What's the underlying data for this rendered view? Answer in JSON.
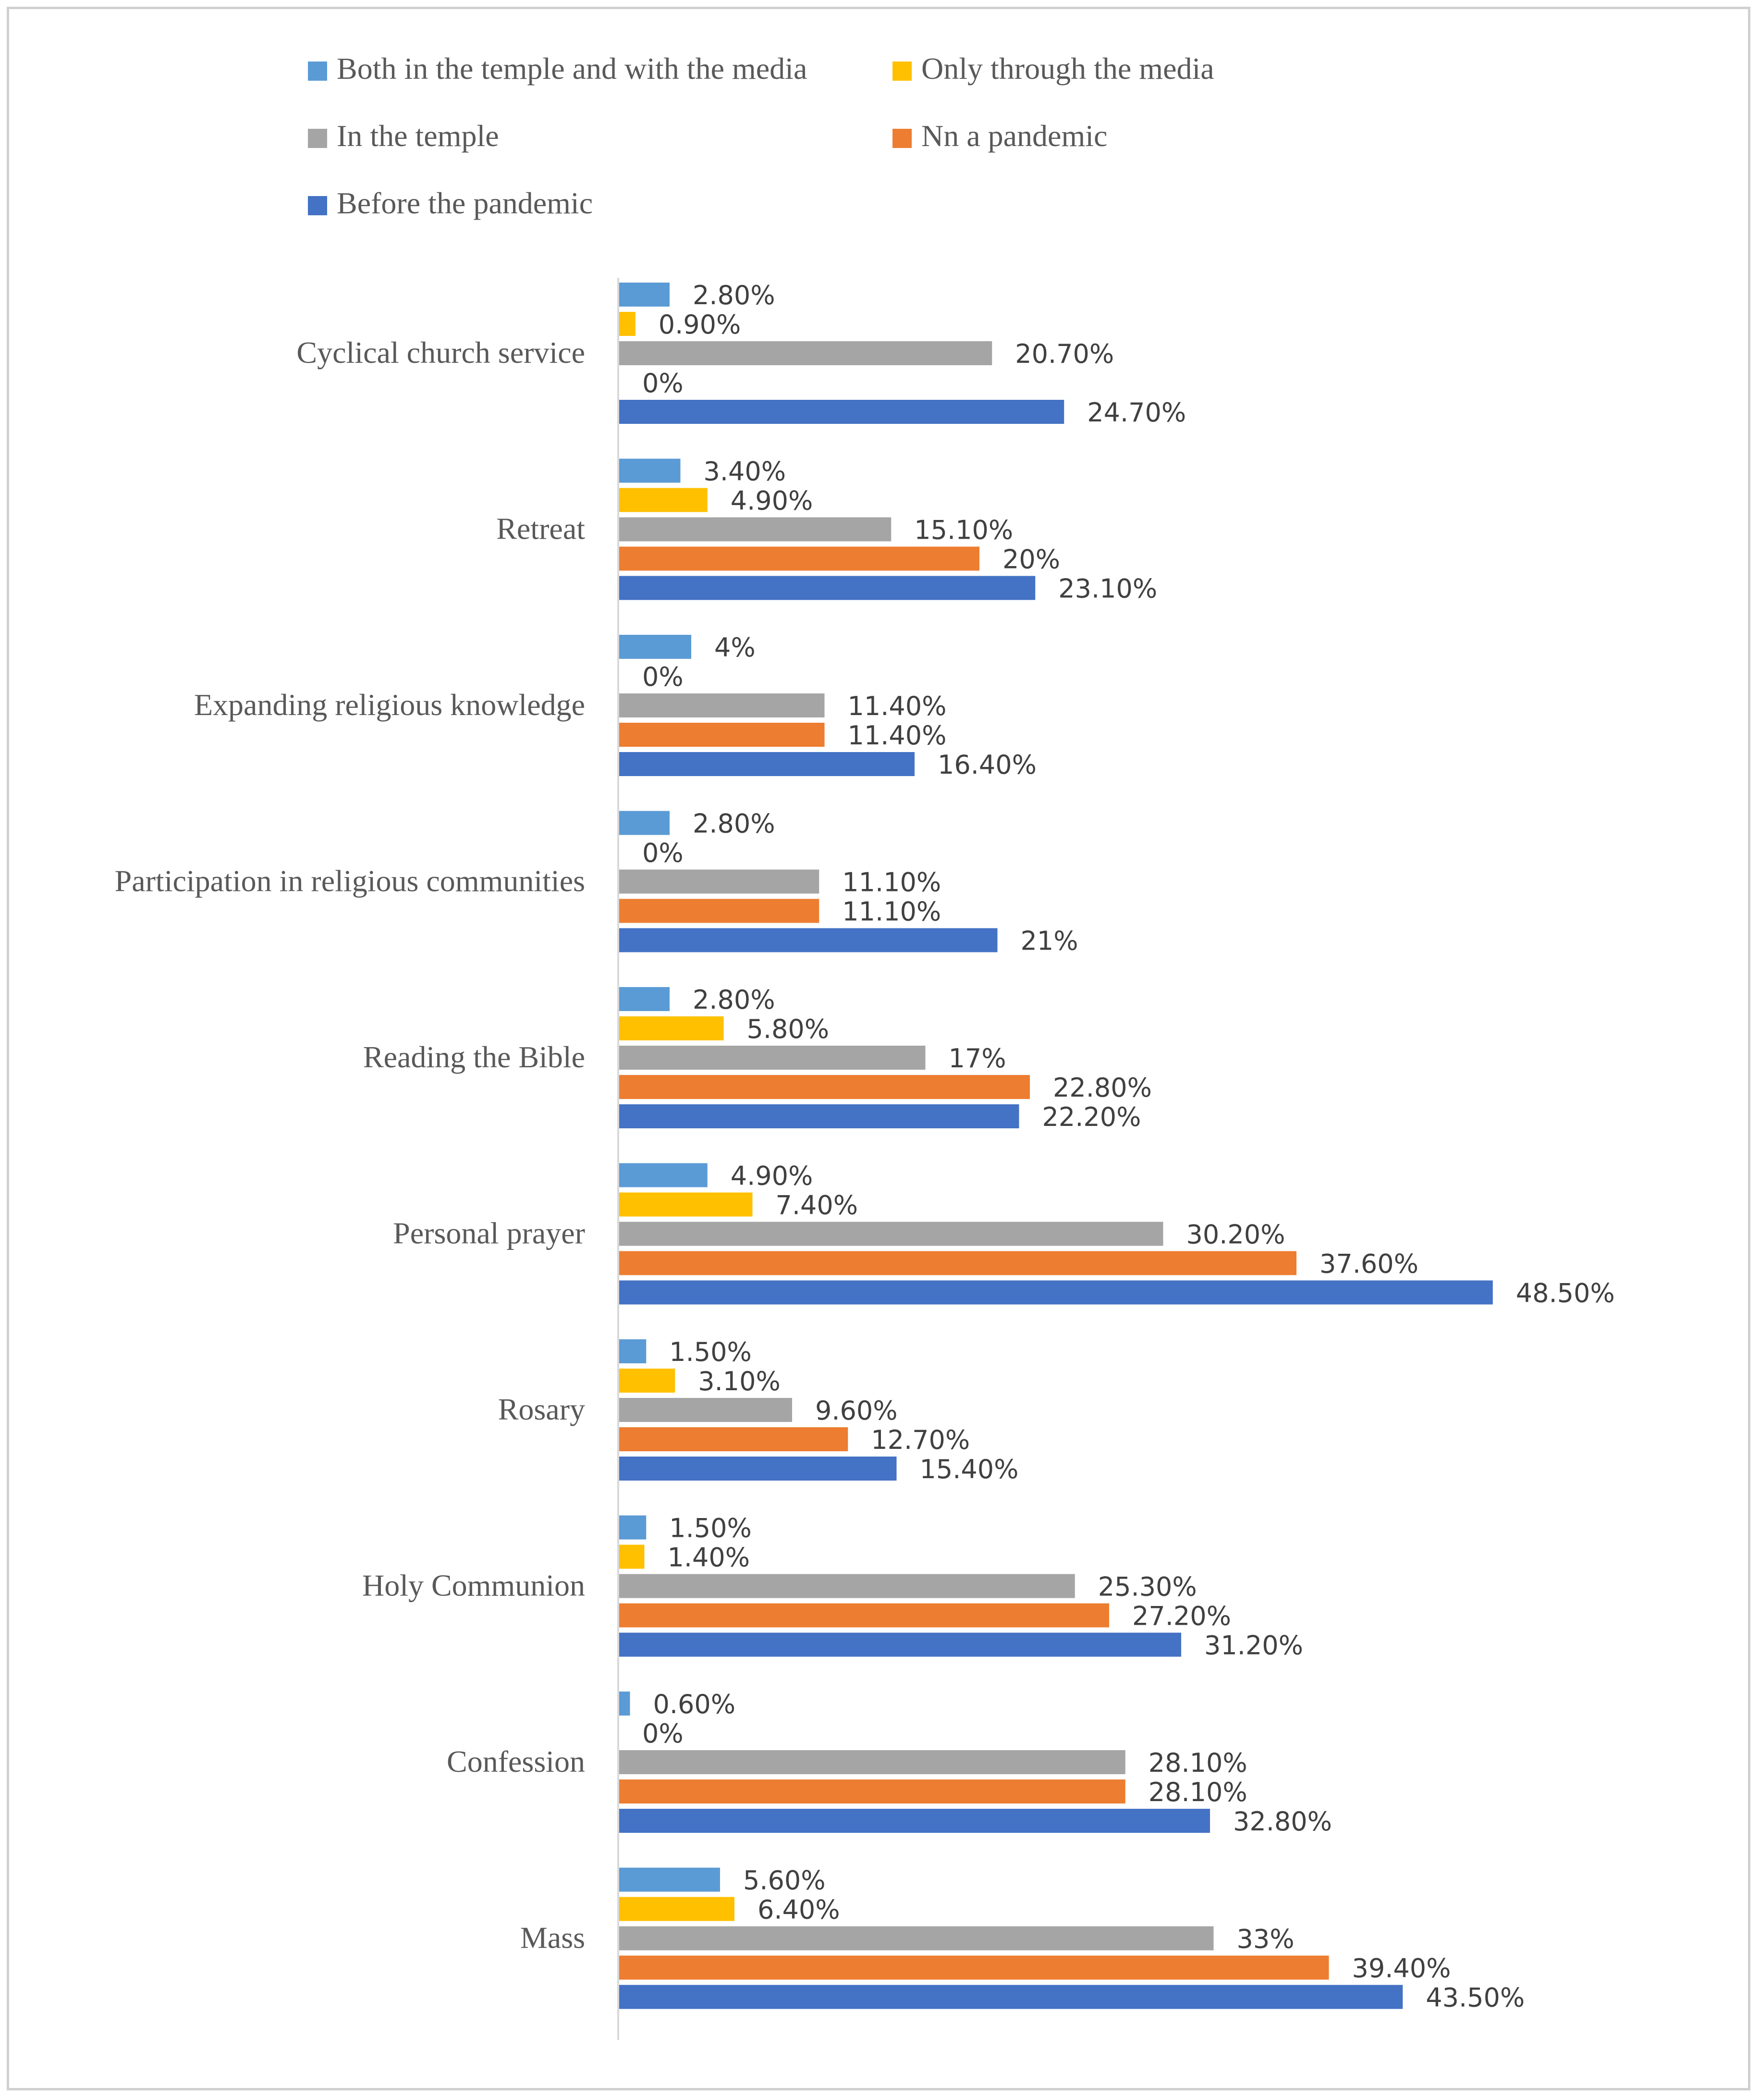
{
  "chart_data": {
    "type": "bar",
    "orientation": "horizontal",
    "title": "",
    "xlabel": "",
    "ylabel": "",
    "xlim": [
      0,
      50
    ],
    "grid": false,
    "legend_position": "top",
    "categories": [
      "Cyclical church service",
      "Retreat",
      "Expanding religious knowledge",
      "Participation in religious communities",
      "Reading the Bible",
      "Personal prayer",
      "Rosary",
      "Holy Communion",
      "Confession",
      "Mass"
    ],
    "series": [
      {
        "name": "Both in the temple and with the media",
        "color": "#5B9BD5",
        "values": [
          2.8,
          3.4,
          4,
          2.8,
          2.8,
          4.9,
          1.5,
          1.5,
          0.6,
          5.6
        ],
        "labels": [
          "2.80%",
          "3.40%",
          "4%",
          "2.80%",
          "2.80%",
          "4.90%",
          "1.50%",
          "1.50%",
          "0.60%",
          "5.60%"
        ]
      },
      {
        "name": "Only through the media",
        "color": "#FFC000",
        "values": [
          0.9,
          4.9,
          0,
          0,
          5.8,
          7.4,
          3.1,
          1.4,
          0,
          6.4
        ],
        "labels": [
          "0.90%",
          "4.90%",
          "0%",
          "0%",
          "5.80%",
          "7.40%",
          "3.10%",
          "1.40%",
          "0%",
          "6.40%"
        ]
      },
      {
        "name": "In the temple",
        "color": "#A5A5A5",
        "values": [
          20.7,
          15.1,
          11.4,
          11.1,
          17,
          30.2,
          9.6,
          25.3,
          28.1,
          33
        ],
        "labels": [
          "20.70%",
          "15.10%",
          "11.40%",
          "11.10%",
          "17%",
          "30.20%",
          "9.60%",
          "25.30%",
          "28.10%",
          "33%"
        ]
      },
      {
        "name": "Nn a pandemic",
        "color": "#ED7D31",
        "values": [
          0,
          20,
          11.4,
          11.1,
          22.8,
          37.6,
          12.7,
          27.2,
          28.1,
          39.4
        ],
        "labels": [
          "0%",
          "20%",
          "11.40%",
          "11.10%",
          "22.80%",
          "37.60%",
          "12.70%",
          "27.20%",
          "28.10%",
          "39.40%"
        ]
      },
      {
        "name": "Before the pandemic",
        "color": "#4472C4",
        "values": [
          24.7,
          23.1,
          16.4,
          21,
          22.2,
          48.5,
          15.4,
          31.2,
          32.8,
          43.5
        ],
        "labels": [
          "24.70%",
          "23.10%",
          "16.40%",
          "21%",
          "22.20%",
          "48.50%",
          "15.40%",
          "31.20%",
          "32.80%",
          "43.50%"
        ]
      }
    ],
    "legend_order": [
      0,
      1,
      2,
      3,
      4
    ]
  }
}
